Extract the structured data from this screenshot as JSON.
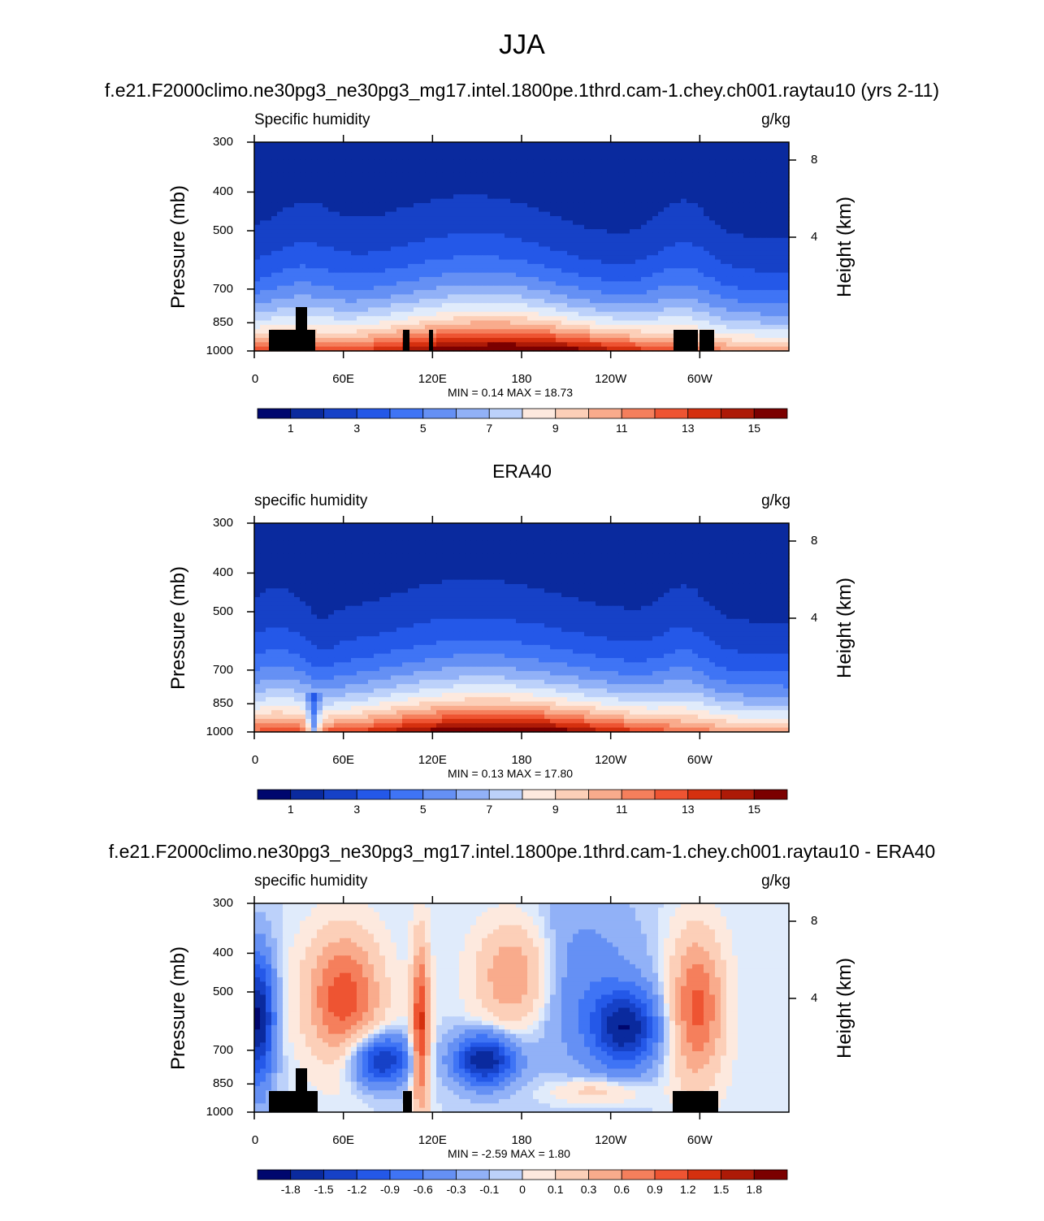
{
  "title": "JJA",
  "chart_data": [
    {
      "type": "heatmap",
      "title": "f.e21.F2000climo.ne30pg3_ne30pg3_mg17.intel.1800pe.1thrd.cam-1.chey.ch001.raytau10 (yrs 2-11)",
      "left_string": "Specific humidity",
      "units": "g/kg",
      "ylabel": "Pressure (mb)",
      "ylabel_right": "Height (km)",
      "ylim": [
        1000,
        300
      ],
      "y_ticks": [
        "300",
        "400",
        "500",
        "700",
        "850",
        "1000"
      ],
      "right_ticks": [
        "8",
        "4"
      ],
      "x_ticks": [
        "0",
        "60E",
        "120E",
        "180",
        "120W",
        "60W"
      ],
      "min_label": "MIN =   0.14  MAX =  18.73",
      "colorbar_labels": [
        "1",
        "3",
        "5",
        "7",
        "9",
        "11",
        "13",
        "15"
      ],
      "colorbar_levels": [
        0,
        1,
        2,
        3,
        4,
        5,
        6,
        7,
        8,
        9,
        10,
        11,
        12,
        13,
        14,
        15
      ],
      "min": 0.14,
      "max": 18.73,
      "field": "model"
    },
    {
      "type": "heatmap",
      "title": "ERA40",
      "left_string": "specific humidity",
      "units": "g/kg",
      "ylabel": "Pressure (mb)",
      "ylabel_right": "Height (km)",
      "ylim": [
        1000,
        300
      ],
      "y_ticks": [
        "300",
        "400",
        "500",
        "700",
        "850",
        "1000"
      ],
      "right_ticks": [
        "8",
        "4"
      ],
      "x_ticks": [
        "0",
        "60E",
        "120E",
        "180",
        "120W",
        "60W"
      ],
      "min_label": "MIN =   0.13  MAX =  17.80",
      "colorbar_labels": [
        "1",
        "3",
        "5",
        "7",
        "9",
        "11",
        "13",
        "15"
      ],
      "colorbar_levels": [
        0,
        1,
        2,
        3,
        4,
        5,
        6,
        7,
        8,
        9,
        10,
        11,
        12,
        13,
        14,
        15
      ],
      "min": 0.13,
      "max": 17.8,
      "field": "obs"
    },
    {
      "type": "heatmap",
      "title": "f.e21.F2000climo.ne30pg3_ne30pg3_mg17.intel.1800pe.1thrd.cam-1.chey.ch001.raytau10 - ERA40",
      "left_string": "specific humidity",
      "units": "g/kg",
      "ylabel": "Pressure (mb)",
      "ylabel_right": "Height (km)",
      "ylim": [
        1000,
        300
      ],
      "y_ticks": [
        "300",
        "400",
        "500",
        "700",
        "850",
        "1000"
      ],
      "right_ticks": [
        "8",
        "4"
      ],
      "x_ticks": [
        "0",
        "60E",
        "120E",
        "180",
        "120W",
        "60W"
      ],
      "min_label": "MIN =  -2.59  MAX =   1.80",
      "colorbar_labels": [
        "-1.8",
        "-1.5",
        "-1.2",
        "-0.9",
        "-0.6",
        "-0.3",
        "-0.1",
        "0",
        "0.1",
        "0.3",
        "0.6",
        "0.9",
        "1.2",
        "1.5",
        "1.8"
      ],
      "colorbar_levels": [
        -1.8,
        -1.5,
        -1.2,
        -0.9,
        -0.6,
        -0.3,
        -0.1,
        0,
        0.1,
        0.3,
        0.6,
        0.9,
        1.2,
        1.5,
        1.8
      ],
      "min": -2.59,
      "max": 1.8,
      "field": "diff"
    }
  ],
  "colormap": [
    "#00076e",
    "#0a2a9e",
    "#1641c7",
    "#2458e8",
    "#3f74f5",
    "#6590f4",
    "#91b1f7",
    "#bcd1fa",
    "#e0ebfb",
    "#fde9de",
    "#fccfb8",
    "#f9ab8c",
    "#f57f5c",
    "#ee5432",
    "#d5300f",
    "#ad1a07",
    "#7b0000"
  ]
}
